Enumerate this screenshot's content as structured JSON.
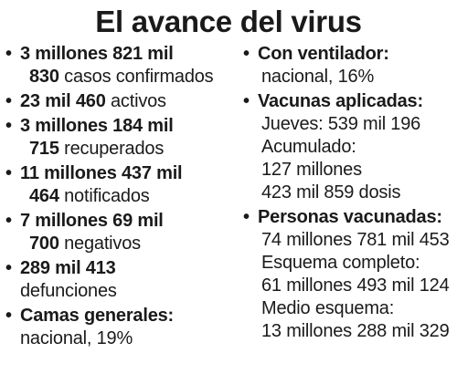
{
  "title": "El avance del virus",
  "left": [
    {
      "l1_bold": "3 millones 821 mil",
      "l2_bold": "830",
      "l2_rest": " casos confirmados"
    },
    {
      "l1_bold": "23 mil 460",
      "l1_rest": " activos"
    },
    {
      "l1_bold": "3 millones 184 mil",
      "l2_bold": "715",
      "l2_rest": " recuperados"
    },
    {
      "l1_bold": "11 millones 437 mil",
      "l2_bold": "464",
      "l2_rest": " notificados"
    },
    {
      "l1_bold": "7 millones 69 mil",
      "l2_bold": "700",
      "l2_rest": " negativos"
    },
    {
      "l1_bold": "289 mil 413",
      "l2_rest": "defunciones"
    },
    {
      "l1_bold": "Camas generales:",
      "l2_rest": "nacional, 19%"
    }
  ],
  "right": {
    "ventilador": {
      "heading": "Con ventilador:",
      "value": "nacional, 16%"
    },
    "vacunas": {
      "heading": "Vacunas aplicadas:",
      "lines": [
        "Jueves: 539 mil 196",
        "Acumulado:",
        "127 millones",
        "423 mil 859 dosis"
      ]
    },
    "personas": {
      "heading": "Personas vacunadas:",
      "lines": [
        "74 millones 781 mil 453",
        "Esquema completo:",
        "61 millones 493 mil 124",
        "Medio esquema:",
        "13 millones 288 mil 329"
      ]
    }
  },
  "bullet_char": "•"
}
